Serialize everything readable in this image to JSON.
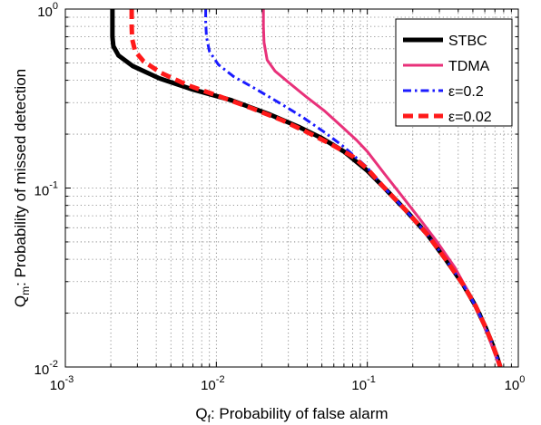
{
  "chart_data": {
    "type": "line",
    "x_scale": "log",
    "y_scale": "log",
    "xlim": [
      0.001,
      1
    ],
    "ylim": [
      0.01,
      1
    ],
    "grid": true,
    "legend_position": "top-right",
    "xlabel": {
      "main": "Q",
      "sub": "f",
      "rest": ": Probability of false alarm"
    },
    "ylabel": {
      "main": "Q",
      "sub": "m",
      "rest": ": Probability of missed detection"
    },
    "x_ticks": [
      {
        "value": 0.001,
        "base": "10",
        "exp": "-3"
      },
      {
        "value": 0.01,
        "base": "10",
        "exp": "-2"
      },
      {
        "value": 0.1,
        "base": "10",
        "exp": "-1"
      },
      {
        "value": 1,
        "base": "10",
        "exp": "0"
      }
    ],
    "y_ticks": [
      {
        "value": 0.01,
        "base": "10",
        "exp": "-2"
      },
      {
        "value": 0.1,
        "base": "10",
        "exp": "-1"
      },
      {
        "value": 1,
        "base": "10",
        "exp": "0"
      }
    ],
    "series": [
      {
        "name": "STBC",
        "color": "#000000",
        "style": "solid",
        "width": 5,
        "points": [
          [
            0.00205,
            1.0
          ],
          [
            0.00205,
            0.8
          ],
          [
            0.00205,
            0.7
          ],
          [
            0.00208,
            0.62
          ],
          [
            0.00225,
            0.55
          ],
          [
            0.0028,
            0.48
          ],
          [
            0.0042,
            0.41
          ],
          [
            0.007,
            0.355
          ],
          [
            0.0125,
            0.31
          ],
          [
            0.022,
            0.26
          ],
          [
            0.035,
            0.22
          ],
          [
            0.05,
            0.19
          ],
          [
            0.07,
            0.16
          ],
          [
            0.1,
            0.125
          ],
          [
            0.13,
            0.1
          ],
          [
            0.18,
            0.075
          ],
          [
            0.25,
            0.055
          ],
          [
            0.33,
            0.04
          ],
          [
            0.43,
            0.029
          ],
          [
            0.52,
            0.022
          ],
          [
            0.6,
            0.017
          ],
          [
            0.66,
            0.014
          ],
          [
            0.72,
            0.0115
          ],
          [
            0.76,
            0.01
          ]
        ]
      },
      {
        "name": "TDMA",
        "color": "#e8317a",
        "style": "solid",
        "width": 3,
        "points": [
          [
            0.0205,
            1.0
          ],
          [
            0.0205,
            0.8
          ],
          [
            0.0207,
            0.65
          ],
          [
            0.0217,
            0.52
          ],
          [
            0.0245,
            0.45
          ],
          [
            0.03,
            0.39
          ],
          [
            0.04,
            0.32
          ],
          [
            0.052,
            0.27
          ],
          [
            0.068,
            0.22
          ],
          [
            0.085,
            0.185
          ],
          [
            0.1,
            0.16
          ],
          [
            0.13,
            0.12
          ],
          [
            0.17,
            0.09
          ],
          [
            0.22,
            0.068
          ],
          [
            0.29,
            0.05
          ],
          [
            0.38,
            0.036
          ],
          [
            0.47,
            0.026
          ],
          [
            0.56,
            0.019
          ],
          [
            0.64,
            0.0145
          ],
          [
            0.7,
            0.0118
          ],
          [
            0.75,
            0.01
          ]
        ]
      },
      {
        "name": "ε=0.2",
        "color": "#1b1bff",
        "style": "dashdot",
        "width": 3,
        "points": [
          [
            0.0085,
            1.0
          ],
          [
            0.0085,
            0.85
          ],
          [
            0.0086,
            0.7
          ],
          [
            0.009,
            0.58
          ],
          [
            0.0103,
            0.49
          ],
          [
            0.013,
            0.42
          ],
          [
            0.018,
            0.36
          ],
          [
            0.026,
            0.3
          ],
          [
            0.037,
            0.25
          ],
          [
            0.052,
            0.205
          ],
          [
            0.07,
            0.17
          ],
          [
            0.1,
            0.13
          ],
          [
            0.13,
            0.1
          ],
          [
            0.18,
            0.075
          ],
          [
            0.25,
            0.055
          ],
          [
            0.33,
            0.04
          ],
          [
            0.43,
            0.029
          ],
          [
            0.52,
            0.022
          ],
          [
            0.6,
            0.017
          ],
          [
            0.66,
            0.014
          ],
          [
            0.72,
            0.0115
          ],
          [
            0.76,
            0.01
          ]
        ]
      },
      {
        "name": "ε=0.02",
        "color": "#ff1a1a",
        "style": "dashed",
        "width": 5,
        "points": [
          [
            0.00275,
            1.0
          ],
          [
            0.00275,
            0.8
          ],
          [
            0.00277,
            0.68
          ],
          [
            0.0029,
            0.58
          ],
          [
            0.0033,
            0.51
          ],
          [
            0.0043,
            0.44
          ],
          [
            0.0065,
            0.375
          ],
          [
            0.0105,
            0.325
          ],
          [
            0.017,
            0.28
          ],
          [
            0.027,
            0.24
          ],
          [
            0.04,
            0.205
          ],
          [
            0.058,
            0.175
          ],
          [
            0.08,
            0.15
          ],
          [
            0.1,
            0.128
          ],
          [
            0.13,
            0.1
          ],
          [
            0.18,
            0.075
          ],
          [
            0.25,
            0.055
          ],
          [
            0.33,
            0.04
          ],
          [
            0.43,
            0.029
          ],
          [
            0.52,
            0.022
          ],
          [
            0.6,
            0.017
          ],
          [
            0.66,
            0.014
          ],
          [
            0.72,
            0.0115
          ],
          [
            0.76,
            0.01
          ]
        ]
      }
    ]
  }
}
